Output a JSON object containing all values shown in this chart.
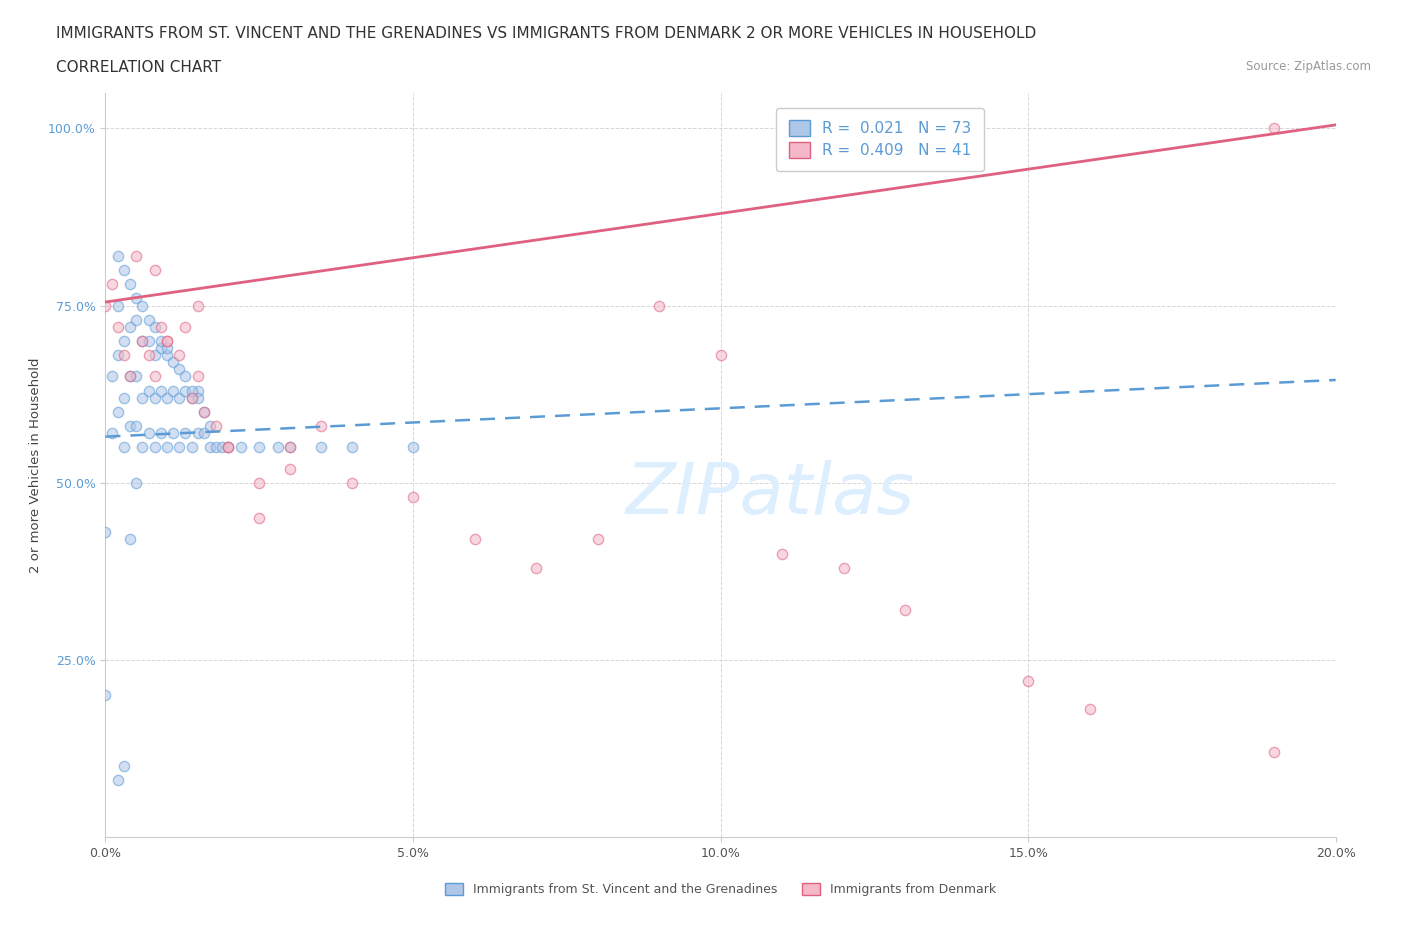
{
  "title_line1": "IMMIGRANTS FROM ST. VINCENT AND THE GRENADINES VS IMMIGRANTS FROM DENMARK 2 OR MORE VEHICLES IN HOUSEHOLD",
  "title_line2": "CORRELATION CHART",
  "source_text": "Source: ZipAtlas.com",
  "ylabel": "2 or more Vehicles in Household",
  "xlim": [
    0.0,
    0.2
  ],
  "ylim": [
    0.0,
    1.05
  ],
  "xtick_labels": [
    "0.0%",
    "5.0%",
    "10.0%",
    "15.0%",
    "20.0%"
  ],
  "xtick_values": [
    0.0,
    0.05,
    0.1,
    0.15,
    0.2
  ],
  "ytick_labels": [
    "25.0%",
    "50.0%",
    "75.0%",
    "100.0%"
  ],
  "ytick_values": [
    0.25,
    0.5,
    0.75,
    1.0
  ],
  "blue_color": "#5b9bd5",
  "blue_face": "#aec6e8",
  "pink_color": "#e06080",
  "pink_face": "#f4b8c8",
  "grid_color": "#cccccc",
  "background_color": "#ffffff",
  "title_fontsize": 11,
  "subtitle_fontsize": 11,
  "tick_fontsize": 9,
  "legend_fontsize": 11,
  "scatter_size": 55,
  "scatter_alpha": 0.55,
  "blue_line_x0": 0.0,
  "blue_line_x1": 0.2,
  "blue_line_y0": 0.565,
  "blue_line_y1": 0.645,
  "pink_line_x0": 0.0,
  "pink_line_x1": 0.2,
  "pink_line_y0": 0.755,
  "pink_line_y1": 1.005,
  "blue_scatter_x": [
    0.0,
    0.0,
    0.001,
    0.001,
    0.002,
    0.002,
    0.002,
    0.003,
    0.003,
    0.003,
    0.004,
    0.004,
    0.004,
    0.005,
    0.005,
    0.005,
    0.005,
    0.006,
    0.006,
    0.006,
    0.007,
    0.007,
    0.007,
    0.008,
    0.008,
    0.008,
    0.009,
    0.009,
    0.009,
    0.01,
    0.01,
    0.01,
    0.011,
    0.011,
    0.012,
    0.012,
    0.013,
    0.013,
    0.014,
    0.014,
    0.015,
    0.015,
    0.016,
    0.017,
    0.018,
    0.019,
    0.02,
    0.022,
    0.025,
    0.028,
    0.03,
    0.035,
    0.04,
    0.05,
    0.002,
    0.003,
    0.004,
    0.005,
    0.006,
    0.007,
    0.008,
    0.009,
    0.01,
    0.011,
    0.012,
    0.013,
    0.014,
    0.015,
    0.016,
    0.017,
    0.002,
    0.003,
    0.004
  ],
  "blue_scatter_y": [
    0.2,
    0.43,
    0.57,
    0.65,
    0.6,
    0.68,
    0.75,
    0.55,
    0.62,
    0.7,
    0.58,
    0.65,
    0.72,
    0.5,
    0.58,
    0.65,
    0.73,
    0.55,
    0.62,
    0.7,
    0.57,
    0.63,
    0.7,
    0.55,
    0.62,
    0.68,
    0.57,
    0.63,
    0.69,
    0.55,
    0.62,
    0.68,
    0.57,
    0.63,
    0.55,
    0.62,
    0.57,
    0.63,
    0.55,
    0.62,
    0.57,
    0.63,
    0.57,
    0.55,
    0.55,
    0.55,
    0.55,
    0.55,
    0.55,
    0.55,
    0.55,
    0.55,
    0.55,
    0.55,
    0.82,
    0.8,
    0.78,
    0.76,
    0.75,
    0.73,
    0.72,
    0.7,
    0.69,
    0.67,
    0.66,
    0.65,
    0.63,
    0.62,
    0.6,
    0.58,
    0.08,
    0.1,
    0.42
  ],
  "pink_scatter_x": [
    0.0,
    0.001,
    0.002,
    0.003,
    0.004,
    0.005,
    0.006,
    0.007,
    0.008,
    0.009,
    0.01,
    0.012,
    0.013,
    0.014,
    0.015,
    0.016,
    0.018,
    0.02,
    0.025,
    0.03,
    0.035,
    0.04,
    0.05,
    0.06,
    0.07,
    0.08,
    0.09,
    0.1,
    0.11,
    0.12,
    0.13,
    0.15,
    0.16,
    0.19,
    0.008,
    0.01,
    0.015,
    0.02,
    0.025,
    0.03,
    0.19
  ],
  "pink_scatter_y": [
    0.75,
    0.78,
    0.72,
    0.68,
    0.65,
    0.82,
    0.7,
    0.68,
    0.65,
    0.72,
    0.7,
    0.68,
    0.72,
    0.62,
    0.65,
    0.6,
    0.58,
    0.55,
    0.5,
    0.55,
    0.58,
    0.5,
    0.48,
    0.42,
    0.38,
    0.42,
    0.75,
    0.68,
    0.4,
    0.38,
    0.32,
    0.22,
    0.18,
    0.12,
    0.8,
    0.7,
    0.75,
    0.55,
    0.45,
    0.52,
    1.0
  ],
  "watermark_color": "#ddeeff"
}
